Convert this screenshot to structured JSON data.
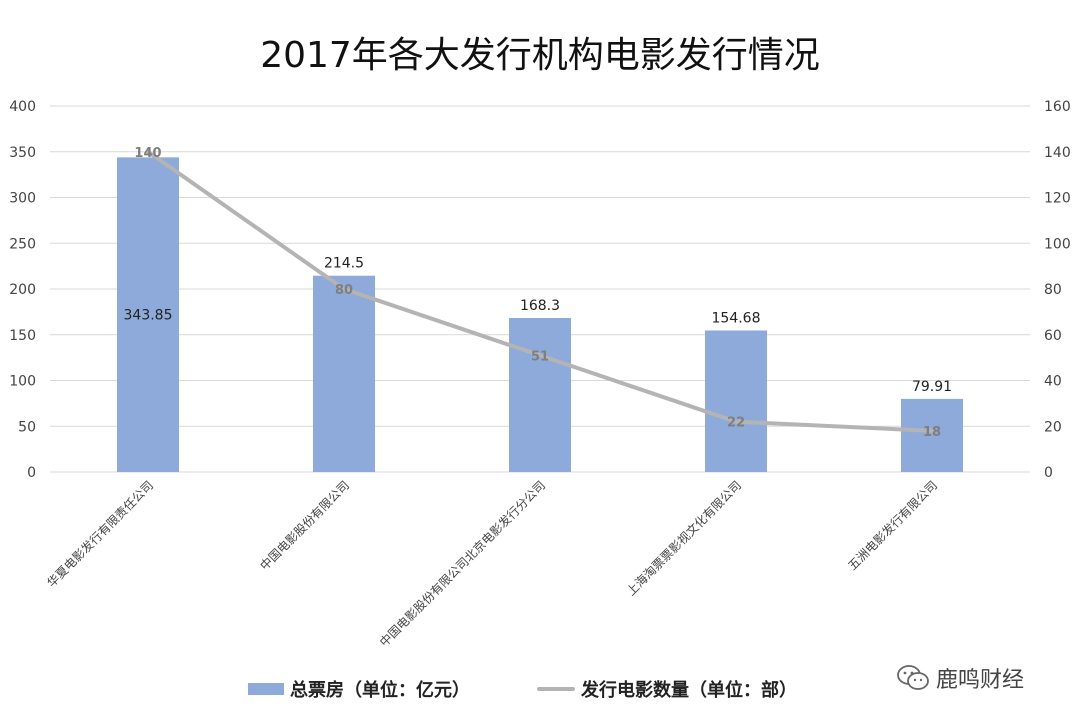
{
  "chart_data": {
    "type": "bar",
    "title": "2017年各大发行机构电影发行情况",
    "categories": [
      "华夏电影发行有限责任公司",
      "中国电影股份有限公司",
      "中国电影股份有限公司北京电影发行分公司",
      "上海淘票票影视文化有限公司",
      "五洲电影发行有限公司"
    ],
    "series": [
      {
        "name": "总票房（单位：亿元）",
        "type": "bar",
        "axis": "left",
        "color": "#8eaadb",
        "values": [
          343.85,
          214.5,
          168.3,
          154.68,
          79.91
        ],
        "labels": [
          "343.85",
          "214.5",
          "168.3",
          "154.68",
          "79.91"
        ]
      },
      {
        "name": "发行电影数量（单位：部）",
        "type": "line",
        "axis": "right",
        "color": "#b4b4b4",
        "values": [
          140,
          80,
          51,
          22,
          18
        ],
        "labels": [
          "140",
          "80",
          "51",
          "22",
          "18"
        ]
      }
    ],
    "y_left": {
      "min": 0,
      "max": 400,
      "ticks": [
        "0",
        "50",
        "100",
        "150",
        "200",
        "250",
        "300",
        "350",
        "400"
      ]
    },
    "y_right": {
      "min": 0,
      "max": 160,
      "ticks": [
        "0",
        "20",
        "40",
        "60",
        "80",
        "100",
        "120",
        "140",
        "160"
      ]
    },
    "grid": true,
    "legend_position": "bottom"
  },
  "watermark": {
    "text": "鹿鸣财经",
    "icon": "wechat-icon"
  }
}
